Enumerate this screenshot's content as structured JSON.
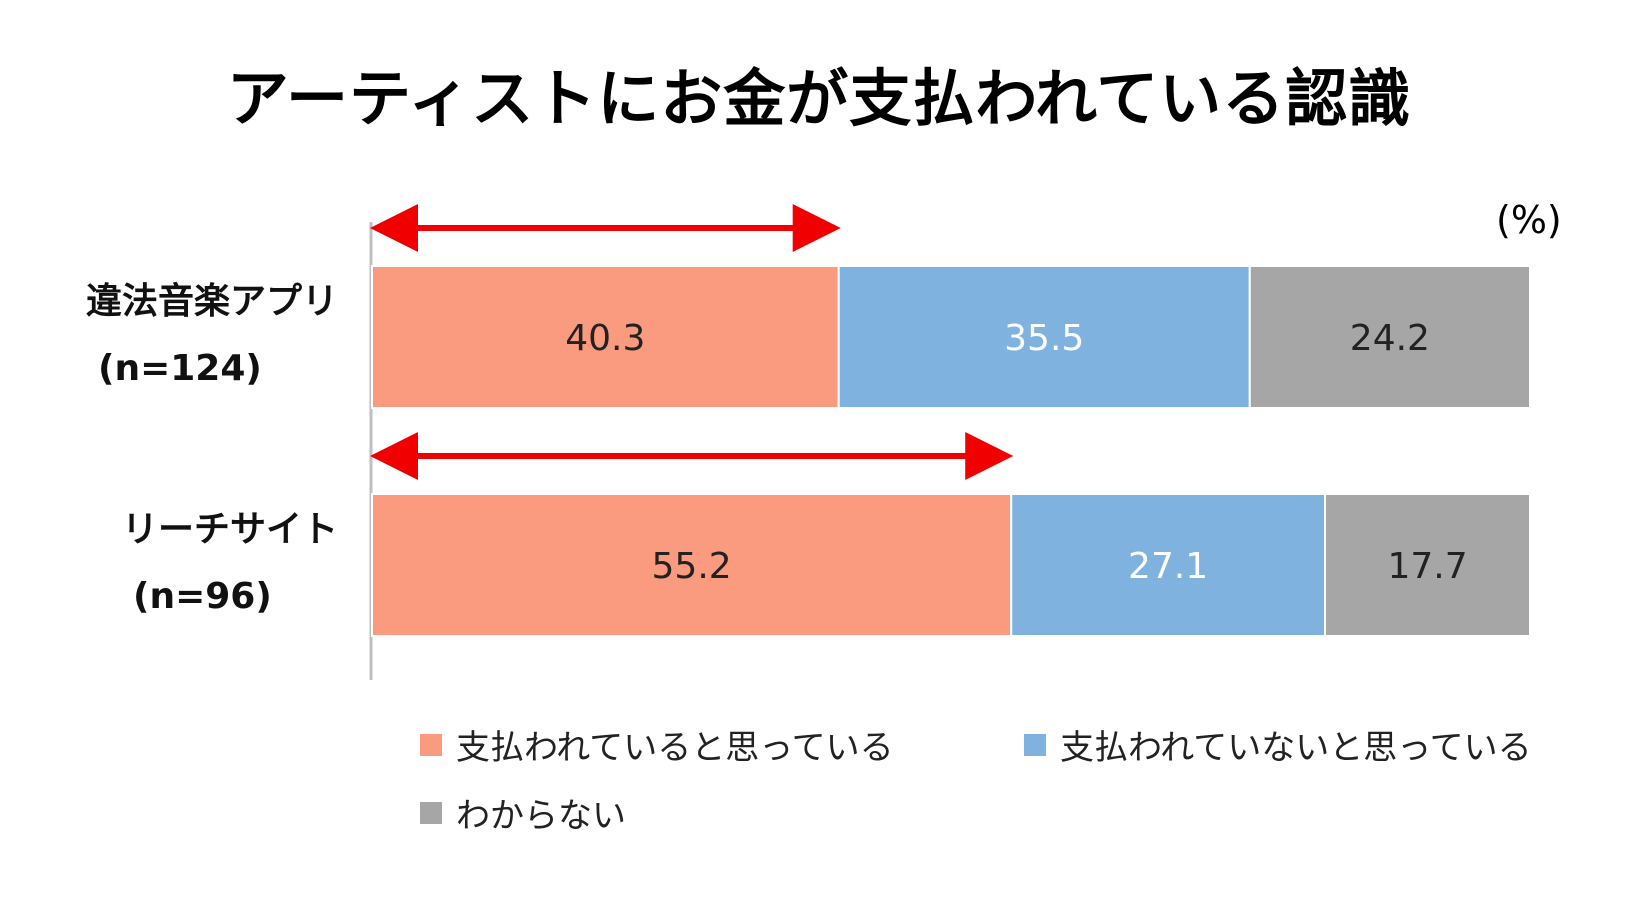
{
  "title": "アーティストにお金が支払われている認識",
  "unit_label": "(%)",
  "colors": {
    "paid": "#FA9A7E",
    "not_paid": "#7FB2DF",
    "unknown": "#A6A6A6",
    "arrow": "#F00000",
    "axis": "#BFBFBF"
  },
  "rows": [
    {
      "name": "違法音楽アプリ",
      "n_label": "(n=124)"
    },
    {
      "name": "リーチサイト",
      "n_label": "(n=96)"
    }
  ],
  "legend": [
    {
      "label": "支払われていると思っている"
    },
    {
      "label": "支払われていないと思っている"
    },
    {
      "label": "わからない"
    }
  ],
  "chart_data": {
    "type": "bar",
    "orientation": "horizontal",
    "stacked": true,
    "title": "アーティストにお金が支払われている認識",
    "categories": [
      "違法音楽アプリ (n=124)",
      "リーチサイト (n=96)"
    ],
    "series": [
      {
        "name": "支払われていると思っている",
        "values": [
          40.3,
          55.2
        ]
      },
      {
        "name": "支払われていないと思っている",
        "values": [
          35.5,
          27.1
        ]
      },
      {
        "name": "わからない",
        "values": [
          24.2,
          17.7
        ]
      }
    ],
    "xlim": [
      0,
      100
    ],
    "unit": "(%)",
    "legend_position": "bottom",
    "grid": false,
    "annotations": "red double-headed arrows spanning the first segment of each bar"
  }
}
